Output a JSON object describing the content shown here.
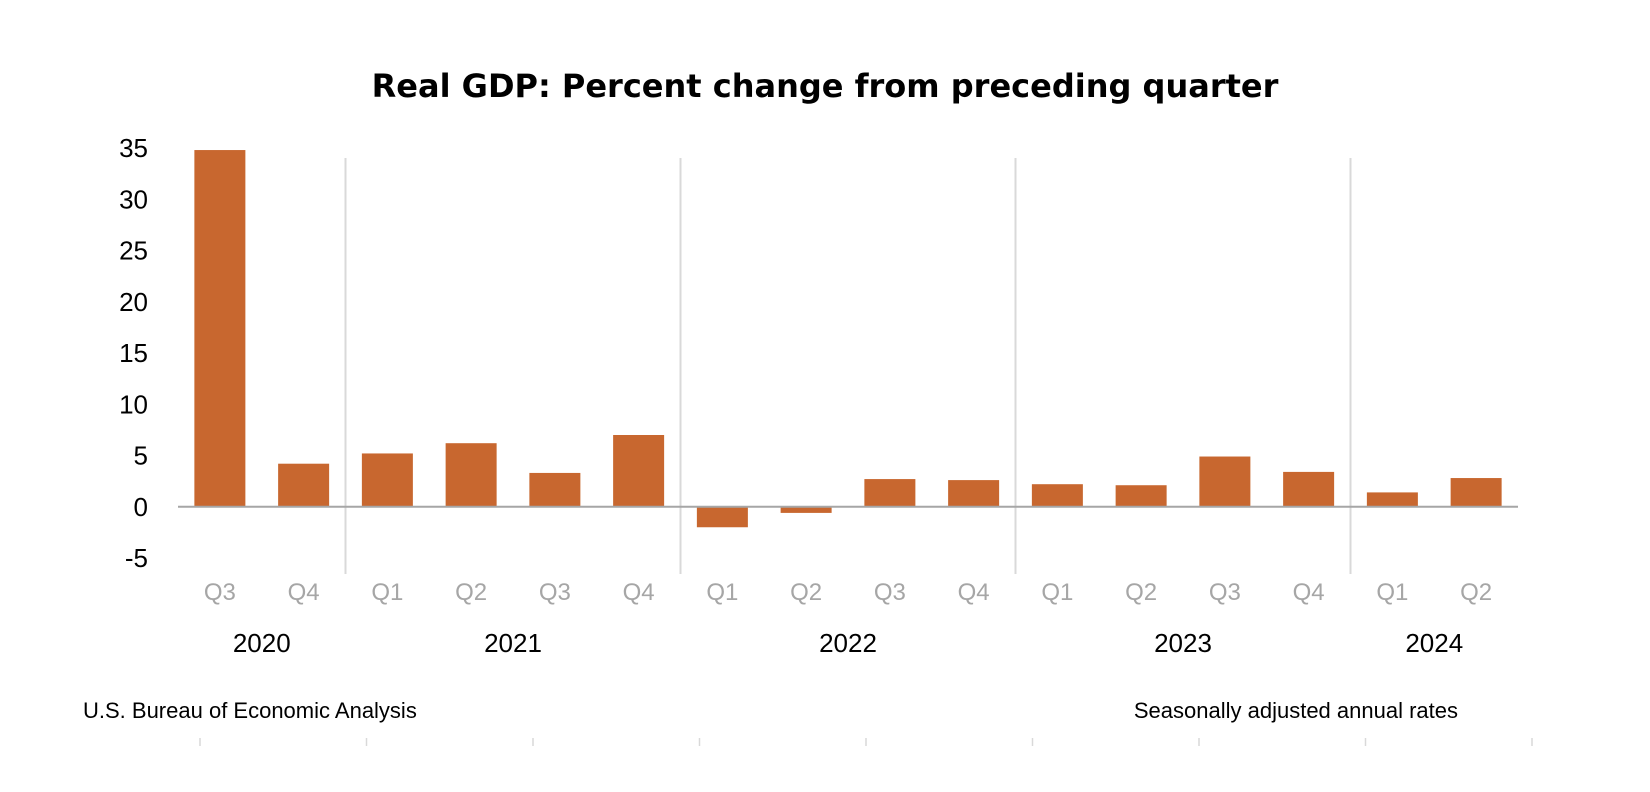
{
  "chart_data": {
    "type": "bar",
    "title": "Real GDP: Percent change from preceding quarter",
    "xlabel": "",
    "ylabel": "",
    "ylim": [
      -5,
      35
    ],
    "yticks": [
      35,
      30,
      25,
      20,
      15,
      10,
      5,
      0,
      -5
    ],
    "ytick_labels": [
      "35",
      "30",
      "25",
      "20",
      "15",
      "10",
      "5",
      "0",
      "-5"
    ],
    "categories": [
      "Q3",
      "Q4",
      "Q1",
      "Q2",
      "Q3",
      "Q4",
      "Q1",
      "Q2",
      "Q3",
      "Q4",
      "Q1",
      "Q2",
      "Q3",
      "Q4",
      "Q1",
      "Q2"
    ],
    "values": [
      34.8,
      4.2,
      5.2,
      6.2,
      3.3,
      7.0,
      -2.0,
      -0.6,
      2.7,
      2.6,
      2.2,
      2.1,
      4.9,
      3.4,
      1.4,
      2.8
    ],
    "year_groups": [
      {
        "label": "2020",
        "start": 0,
        "count": 2
      },
      {
        "label": "2021",
        "start": 2,
        "count": 4
      },
      {
        "label": "2022",
        "start": 6,
        "count": 4
      },
      {
        "label": "2023",
        "start": 10,
        "count": 4
      },
      {
        "label": "2024",
        "start": 14,
        "count": 2
      }
    ],
    "bar_color": "#C8672F",
    "grid": false,
    "legend": "none"
  },
  "footer": {
    "source": "U.S. Bureau of Economic Analysis",
    "note": "Seasonally adjusted annual rates"
  }
}
